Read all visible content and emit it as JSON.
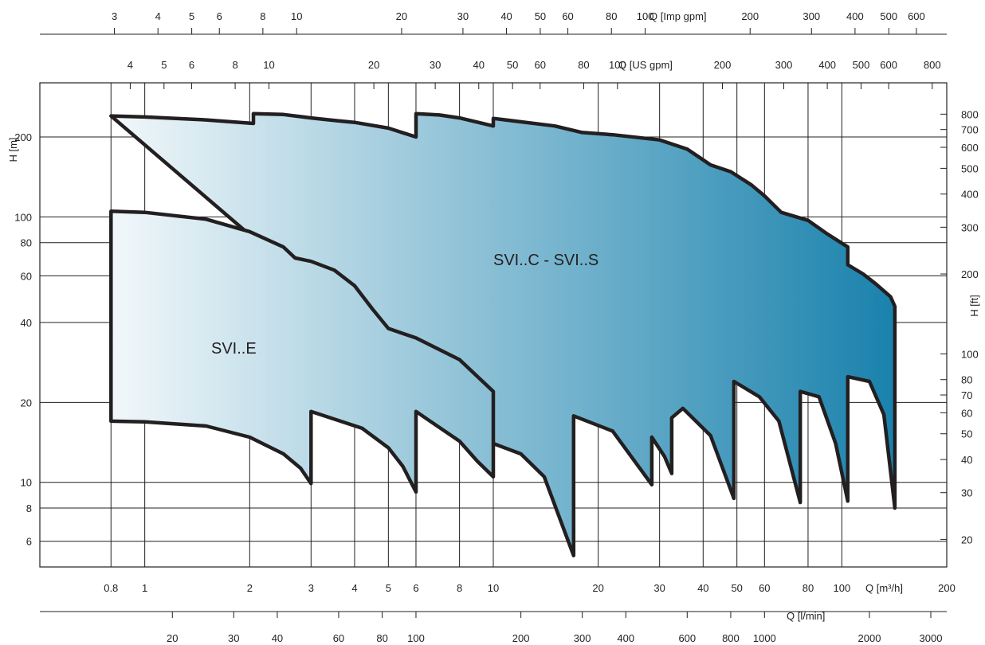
{
  "chart_data": {
    "type": "area",
    "title": "",
    "xlabel": "Q [m³/h]",
    "ylabel": "H [m]",
    "secondary_ylabel": "H [ft]",
    "x_scale": "log",
    "y_scale": "log",
    "xlim": [
      0.5,
      200
    ],
    "ylim": [
      4.8,
      320
    ],
    "grid": true,
    "colors": {
      "fill_start": "#ffffff",
      "fill_end": "#1a82ad",
      "outline": "#231f20",
      "grid": "#231f20"
    },
    "x_ticks": [
      "0.8",
      "1",
      "2",
      "3",
      "4",
      "5",
      "6",
      "8",
      "10",
      "20",
      "30",
      "40",
      "50",
      "60",
      "80",
      "100",
      "200"
    ],
    "y_ticks": [
      "6",
      "8",
      "10",
      "20",
      "40",
      "60",
      "80",
      "100",
      "200"
    ],
    "ft_ticks": [
      "20",
      "30",
      "40",
      "50",
      "60",
      "70",
      "80",
      "100",
      "200",
      "300",
      "400",
      "500",
      "600",
      "700",
      "800"
    ],
    "imp_gpm_label": "Q [Imp gpm]",
    "imp_gpm_ticks": [
      "3",
      "4",
      "5",
      "6",
      "8",
      "10",
      "20",
      "30",
      "40",
      "50",
      "60",
      "80",
      "100",
      "200",
      "300",
      "400",
      "500",
      "600"
    ],
    "us_gpm_label": "Q [US gpm]",
    "us_gpm_ticks": [
      "4",
      "5",
      "6",
      "8",
      "10",
      "20",
      "30",
      "40",
      "50",
      "60",
      "80",
      "100",
      "200",
      "300",
      "400",
      "500",
      "600",
      "800"
    ],
    "lmin_label": "Q [l/min]",
    "lmin_ticks": [
      "20",
      "30",
      "40",
      "60",
      "80",
      "100",
      "200",
      "300",
      "400",
      "600",
      "800",
      "1000",
      "2000",
      "3000"
    ],
    "series": [
      {
        "name": "SVI..C - SVI..S",
        "outline": [
          [
            0.8,
            240
          ],
          [
            1.0,
            238
          ],
          [
            1.5,
            232
          ],
          [
            2.05,
            225
          ],
          [
            2.05,
            245
          ],
          [
            2.5,
            243
          ],
          [
            3.0,
            236
          ],
          [
            3.5,
            231
          ],
          [
            4.0,
            227
          ],
          [
            5.0,
            216
          ],
          [
            6.0,
            200
          ],
          [
            6.0,
            245
          ],
          [
            7.0,
            242
          ],
          [
            8.0,
            236
          ],
          [
            10.0,
            220
          ],
          [
            10.0,
            235
          ],
          [
            15.0,
            220
          ],
          [
            18.0,
            208
          ],
          [
            22.0,
            204
          ],
          [
            30.0,
            195
          ],
          [
            36.0,
            180
          ],
          [
            42.0,
            157
          ],
          [
            48.0,
            148
          ],
          [
            55.0,
            132
          ],
          [
            60.0,
            120
          ],
          [
            67.0,
            104
          ],
          [
            80.0,
            97
          ],
          [
            90.0,
            87
          ],
          [
            104.0,
            77
          ],
          [
            104.0,
            66
          ],
          [
            115.0,
            61
          ],
          [
            125.0,
            56
          ],
          [
            138.0,
            50
          ],
          [
            142.0,
            46
          ],
          [
            142.0,
            8.0
          ],
          [
            132.0,
            18
          ],
          [
            120.0,
            24
          ],
          [
            104.0,
            25
          ],
          [
            104.0,
            8.5
          ],
          [
            96.0,
            14
          ],
          [
            86.0,
            21
          ],
          [
            76.0,
            22
          ],
          [
            76.0,
            8.4
          ],
          [
            66.0,
            17
          ],
          [
            58.0,
            21
          ],
          [
            49.0,
            24
          ],
          [
            49.0,
            8.7
          ],
          [
            42.0,
            15
          ],
          [
            35.0,
            19
          ],
          [
            32.5,
            17.5
          ],
          [
            32.5,
            10.8
          ],
          [
            31.0,
            12.5
          ],
          [
            28.5,
            14.8
          ],
          [
            28.5,
            9.8
          ],
          [
            22.0,
            15.6
          ],
          [
            17.0,
            17.8
          ],
          [
            17.0,
            5.3
          ],
          [
            14.0,
            10.5
          ],
          [
            12.0,
            12.8
          ],
          [
            10.0,
            14
          ]
        ]
      },
      {
        "name": "SVI..E",
        "outline": [
          [
            0.8,
            105
          ],
          [
            1.0,
            104
          ],
          [
            1.5,
            98
          ],
          [
            2.0,
            88
          ],
          [
            2.5,
            77
          ],
          [
            2.7,
            70
          ],
          [
            3.0,
            68
          ],
          [
            3.5,
            63
          ],
          [
            4.0,
            55
          ],
          [
            4.5,
            45
          ],
          [
            5.0,
            38
          ],
          [
            6.0,
            35
          ],
          [
            8.0,
            29
          ],
          [
            10.0,
            22
          ],
          [
            10.0,
            10.5
          ],
          [
            9.0,
            12
          ],
          [
            8.0,
            14.3
          ],
          [
            6.5,
            17.2
          ],
          [
            6.0,
            18.5
          ],
          [
            6.0,
            9.2
          ],
          [
            5.5,
            11.5
          ],
          [
            5.0,
            13.5
          ],
          [
            4.2,
            16
          ],
          [
            3.0,
            18.5
          ],
          [
            3.0,
            9.9
          ],
          [
            2.8,
            11.3
          ],
          [
            2.5,
            12.8
          ],
          [
            2.0,
            14.8
          ],
          [
            1.5,
            16.3
          ],
          [
            1.0,
            16.9
          ],
          [
            0.8,
            17
          ]
        ]
      }
    ],
    "annotations": [
      "SVI..C - SVI..S",
      "SVI..E"
    ]
  }
}
